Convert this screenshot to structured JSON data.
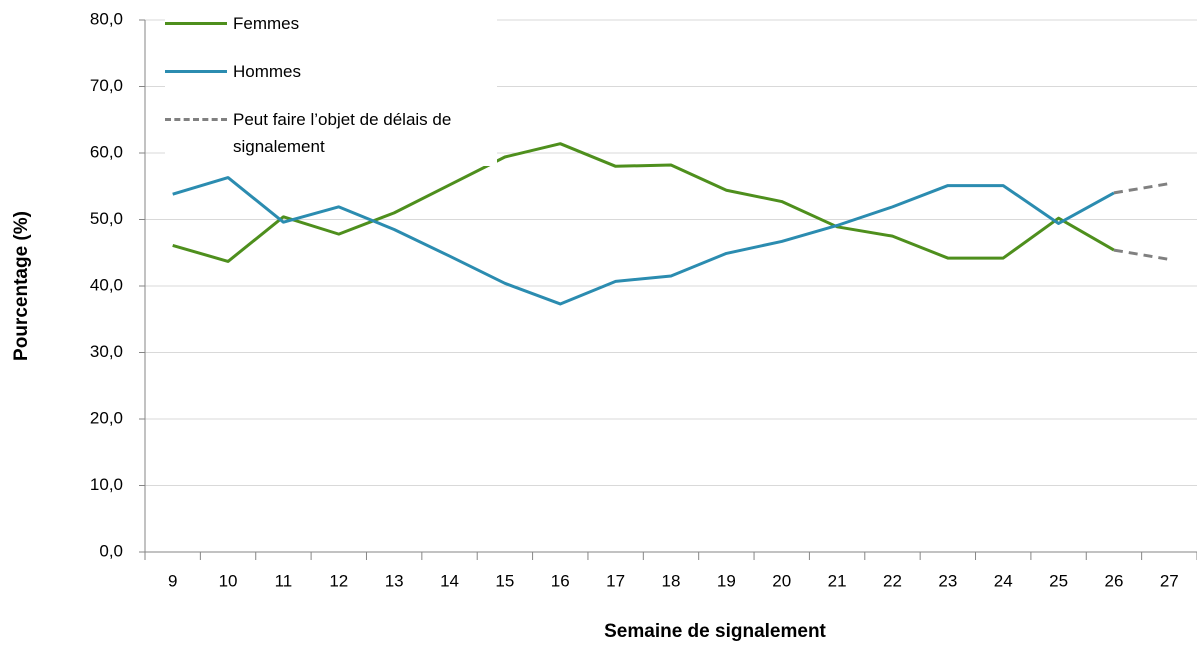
{
  "chart_data": {
    "type": "line",
    "categories": [
      "9",
      "10",
      "11",
      "12",
      "13",
      "14",
      "15",
      "16",
      "17",
      "18",
      "19",
      "20",
      "21",
      "22",
      "23",
      "24",
      "25",
      "26",
      "27"
    ],
    "series": [
      {
        "name": "Femmes",
        "color": "#4e8f1d",
        "values": [
          46.1,
          43.7,
          50.4,
          47.8,
          51.0,
          55.2,
          59.4,
          61.4,
          58.0,
          58.2,
          54.4,
          52.7,
          48.9,
          47.5,
          44.2,
          44.2,
          50.2,
          45.4,
          44.0
        ]
      },
      {
        "name": "Hommes",
        "color": "#2b8cb0",
        "values": [
          53.8,
          56.3,
          49.6,
          51.9,
          48.5,
          44.5,
          40.4,
          37.3,
          40.7,
          41.5,
          44.9,
          46.7,
          49.1,
          51.9,
          55.1,
          55.1,
          49.4,
          54.0,
          55.4
        ]
      }
    ],
    "dashed": {
      "name": "Peut faire l’objet de délais de signalement",
      "color": "#808080",
      "from_category": "26"
    },
    "xlabel": "Semaine de signalement",
    "ylabel": "Pourcentage (%)",
    "ylim": [
      0,
      80
    ],
    "yticks": [
      {
        "value": 0,
        "label": "0,0"
      },
      {
        "value": 10,
        "label": "10,0"
      },
      {
        "value": 20,
        "label": "20,0"
      },
      {
        "value": 30,
        "label": "30,0"
      },
      {
        "value": 40,
        "label": "40,0"
      },
      {
        "value": 50,
        "label": "50,0"
      },
      {
        "value": 60,
        "label": "60,0"
      },
      {
        "value": 70,
        "label": "70,0"
      },
      {
        "value": 80,
        "label": "80,0"
      }
    ],
    "grid": true,
    "legend": "upper left"
  }
}
